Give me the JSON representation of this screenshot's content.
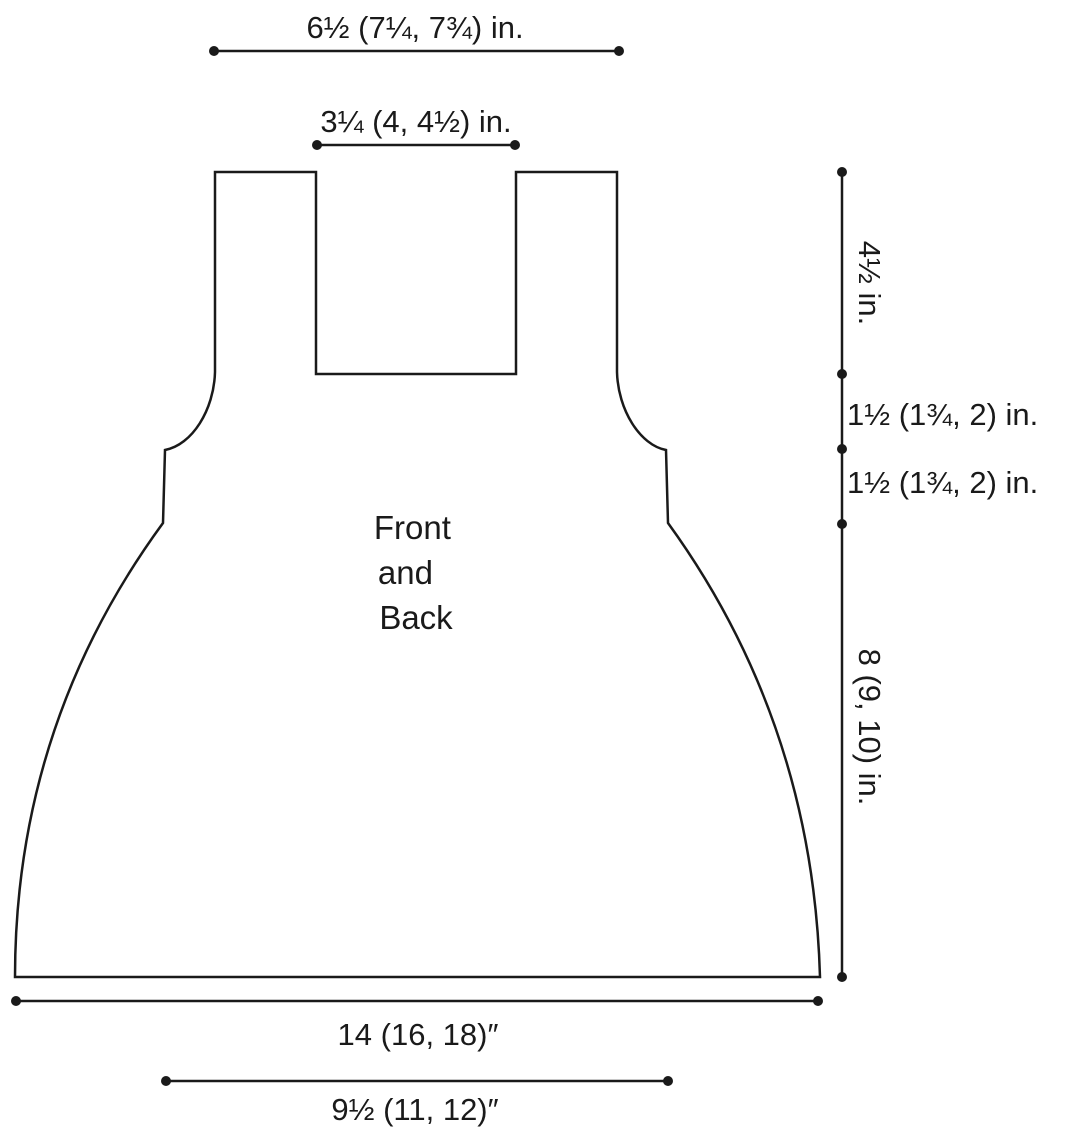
{
  "piece": {
    "label_lines": [
      "Front",
      "and",
      "Back"
    ]
  },
  "dimensions": {
    "top_width": "6½ (7¼, 7¾) in.",
    "neck_width": "3¼ (4, 4½) in.",
    "strap_height": "4½ in.",
    "armhole_upper": "1½ (1¾, 2) in.",
    "armhole_lower": "1½ (1¾, 2) in.",
    "skirt_length": "8 (9, 10) in.",
    "hem_width": "14 (16, 18)″",
    "bodice_width": "9½ (11, 12)″"
  },
  "colors": {
    "ink": "#1a1a1a",
    "background": "#ffffff"
  }
}
